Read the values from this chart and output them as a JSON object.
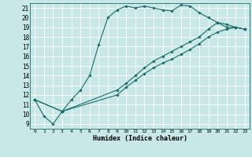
{
  "title": "",
  "xlabel": "Humidex (Indice chaleur)",
  "bg_color": "#c8e8e8",
  "grid_color": "#ffffff",
  "line_color": "#1a6b6b",
  "xlim": [
    -0.5,
    23.5
  ],
  "ylim": [
    8.5,
    21.5
  ],
  "xticks": [
    0,
    1,
    2,
    3,
    4,
    5,
    6,
    7,
    8,
    9,
    10,
    11,
    12,
    13,
    14,
    15,
    16,
    17,
    18,
    19,
    20,
    21,
    22,
    23
  ],
  "yticks": [
    9,
    10,
    11,
    12,
    13,
    14,
    15,
    16,
    17,
    18,
    19,
    20,
    21
  ],
  "lines": [
    {
      "x": [
        0,
        1,
        2,
        3,
        4,
        5,
        6,
        7,
        8,
        9,
        10,
        11,
        12,
        13,
        14,
        15,
        16,
        17,
        18,
        19,
        20,
        21,
        22,
        23
      ],
      "y": [
        11.5,
        9.8,
        9.0,
        10.3,
        11.5,
        12.5,
        14.0,
        17.2,
        20.0,
        20.8,
        21.2,
        21.0,
        21.2,
        21.0,
        20.8,
        20.7,
        21.3,
        21.2,
        20.5,
        20.0,
        19.5,
        19.0,
        19.0,
        18.8
      ]
    },
    {
      "x": [
        0,
        3,
        23
      ],
      "y": [
        11.5,
        10.3,
        18.8
      ]
    },
    {
      "x": [
        0,
        3,
        23
      ],
      "y": [
        11.5,
        10.3,
        18.8
      ]
    }
  ],
  "line2": {
    "x": [
      0,
      3,
      9,
      10,
      11,
      12,
      13,
      14,
      15,
      16,
      17,
      18,
      19,
      20,
      21,
      22,
      23
    ],
    "y": [
      11.5,
      10.3,
      12.0,
      12.8,
      13.5,
      14.2,
      14.8,
      15.3,
      15.7,
      16.2,
      16.7,
      17.3,
      18.0,
      18.5,
      18.8,
      19.0,
      18.8
    ]
  },
  "line3": {
    "x": [
      0,
      3,
      9,
      10,
      11,
      12,
      13,
      14,
      15,
      16,
      17,
      18,
      19,
      20,
      21,
      22,
      23
    ],
    "y": [
      11.5,
      10.3,
      12.5,
      13.2,
      14.0,
      14.8,
      15.5,
      16.0,
      16.5,
      17.0,
      17.5,
      18.0,
      18.8,
      19.5,
      19.3,
      19.0,
      18.8
    ]
  }
}
